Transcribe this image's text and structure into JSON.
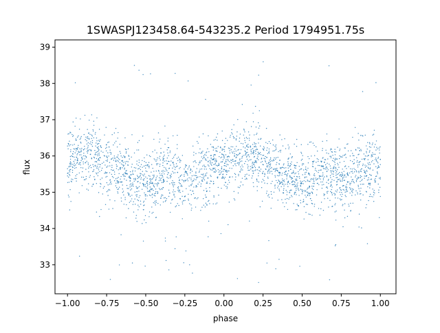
{
  "chart_data": {
    "type": "scatter",
    "title": "1SWASPJ123458.64-543235.2 Period 1794951.75s",
    "xlabel": "phase",
    "ylabel": "flux",
    "xlim": [
      -1.08,
      1.1
    ],
    "ylim": [
      32.2,
      39.2
    ],
    "x_ticks": [
      -1.0,
      -0.75,
      -0.5,
      -0.25,
      0.0,
      0.25,
      0.5,
      0.75,
      1.0
    ],
    "x_tick_labels": [
      "−1.00",
      "−0.75",
      "−0.50",
      "−0.25",
      "0.00",
      "0.25",
      "0.50",
      "0.75",
      "1.00"
    ],
    "y_ticks": [
      33,
      34,
      35,
      36,
      37,
      38,
      39
    ],
    "y_tick_labels": [
      "33",
      "34",
      "35",
      "36",
      "37",
      "38",
      "39"
    ],
    "grid": false,
    "point_color": "#1f77b4",
    "series": [
      {
        "phase_range": [
          -1.0,
          1.0
        ],
        "flux_profile": {
          "phase": [
            0.0,
            0.05,
            0.1,
            0.15,
            0.2,
            0.25,
            0.3,
            0.35,
            0.4,
            0.45,
            0.5,
            0.55,
            0.6,
            0.65,
            0.7,
            0.75,
            0.8,
            0.85,
            0.9,
            0.95,
            1.0
          ],
          "median_flux": [
            35.7,
            35.9,
            36.05,
            36.1,
            36.0,
            35.8,
            35.65,
            35.55,
            35.45,
            35.3,
            35.2,
            35.3,
            35.4,
            35.5,
            35.4,
            35.4,
            35.4,
            35.5,
            35.6,
            35.7,
            35.7
          ]
        },
        "core_scatter": 0.45,
        "outlier_range": [
          32.5,
          38.7
        ]
      }
    ]
  }
}
